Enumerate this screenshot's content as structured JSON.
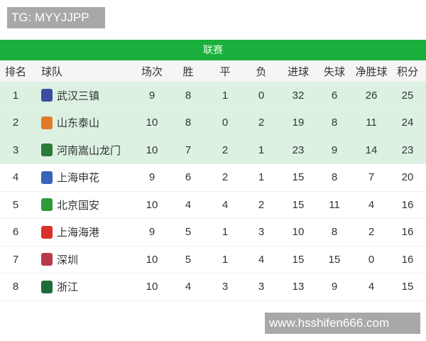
{
  "watermarks": {
    "top": "TG: MYYJJPP",
    "bottom": "www.hsshifen666.com"
  },
  "title": "联赛",
  "headers": [
    "排名",
    "球队",
    "场次",
    "胜",
    "平",
    "负",
    "进球",
    "失球",
    "净胜球",
    "积分"
  ],
  "colors": {
    "header_green": "#1aaf3c",
    "top_row_bg": "#dcf1e2"
  },
  "rows": [
    {
      "rank": "1",
      "team": "武汉三镇",
      "logo": "#3a4fa0",
      "played": "9",
      "w": "8",
      "d": "1",
      "l": "0",
      "gf": "32",
      "ga": "6",
      "gd": "26",
      "pts": "25"
    },
    {
      "rank": "2",
      "team": "山东泰山",
      "logo": "#e07a2a",
      "played": "10",
      "w": "8",
      "d": "0",
      "l": "2",
      "gf": "19",
      "ga": "8",
      "gd": "11",
      "pts": "24"
    },
    {
      "rank": "3",
      "team": "河南嵩山龙门",
      "logo": "#2a7a3a",
      "played": "10",
      "w": "7",
      "d": "2",
      "l": "1",
      "gf": "23",
      "ga": "9",
      "gd": "14",
      "pts": "23"
    },
    {
      "rank": "4",
      "team": "上海申花",
      "logo": "#3a64b8",
      "played": "9",
      "w": "6",
      "d": "2",
      "l": "1",
      "gf": "15",
      "ga": "8",
      "gd": "7",
      "pts": "20"
    },
    {
      "rank": "5",
      "team": "北京国安",
      "logo": "#2e9a3a",
      "played": "10",
      "w": "4",
      "d": "4",
      "l": "2",
      "gf": "15",
      "ga": "11",
      "gd": "4",
      "pts": "16"
    },
    {
      "rank": "6",
      "team": "上海海港",
      "logo": "#d8302a",
      "played": "9",
      "w": "5",
      "d": "1",
      "l": "3",
      "gf": "10",
      "ga": "8",
      "gd": "2",
      "pts": "16"
    },
    {
      "rank": "7",
      "team": "深圳",
      "logo": "#b83a4a",
      "played": "10",
      "w": "5",
      "d": "1",
      "l": "4",
      "gf": "15",
      "ga": "15",
      "gd": "0",
      "pts": "16"
    },
    {
      "rank": "8",
      "team": "浙江",
      "logo": "#1f6a3a",
      "played": "10",
      "w": "4",
      "d": "3",
      "l": "3",
      "gf": "13",
      "ga": "9",
      "gd": "4",
      "pts": "15"
    }
  ]
}
